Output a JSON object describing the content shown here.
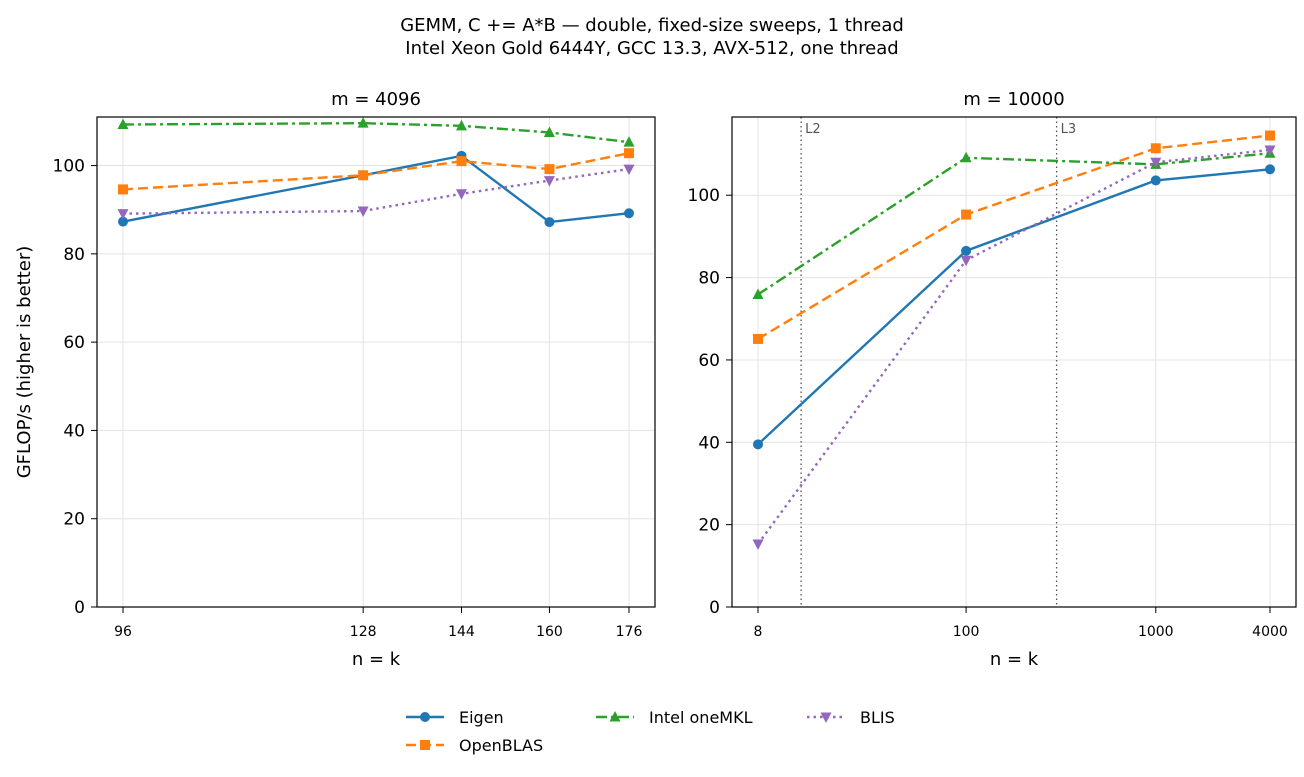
{
  "figure": {
    "title_line1": "GEMM, C += A*B — double, fixed-size sweeps, 1 thread",
    "title_line2": "Intel Xeon Gold 6444Y, GCC 13.3, AVX-512, one thread",
    "ylabel": "GFLOP/s (higher is better)"
  },
  "legend": [
    {
      "name": "Eigen",
      "color": "#1f77b4",
      "marker": "circle",
      "dash": "solid"
    },
    {
      "name": "Intel oneMKL",
      "color": "#2ca02c",
      "marker": "triangle-up",
      "dash": "dashdot"
    },
    {
      "name": "BLIS",
      "color": "#9467bd",
      "marker": "triangle-down",
      "dash": "dotted"
    },
    {
      "name": "OpenBLAS",
      "color": "#ff7f0e",
      "marker": "square",
      "dash": "dashed"
    }
  ],
  "chart_data": [
    {
      "type": "line",
      "title": "m = 4096",
      "xlabel": "n = k",
      "ylabel": "GFLOP/s (higher is better)",
      "x_scale": "log",
      "x": [
        96,
        128,
        144,
        160,
        176
      ],
      "x_ticks": [
        "96",
        "128",
        "144",
        "160",
        "176"
      ],
      "y_ticks": [
        "0",
        "20",
        "40",
        "60",
        "80",
        "100"
      ],
      "ylim": [
        0,
        111
      ],
      "grid": true,
      "series": [
        {
          "name": "Eigen",
          "values": [
            87.3,
            97.8,
            102.2,
            87.2,
            89.2
          ]
        },
        {
          "name": "OpenBLAS",
          "values": [
            94.6,
            97.8,
            101.0,
            99.2,
            102.8
          ]
        },
        {
          "name": "Intel oneMKL",
          "values": [
            109.3,
            109.6,
            109.0,
            107.5,
            105.3
          ]
        },
        {
          "name": "BLIS",
          "values": [
            89.1,
            89.7,
            93.6,
            96.6,
            99.2
          ]
        }
      ]
    },
    {
      "type": "line",
      "title": "m = 10000",
      "xlabel": "n = k",
      "x_scale": "log",
      "x": [
        8,
        100,
        1000,
        4000
      ],
      "x_ticks": [
        "8",
        "100",
        "1000",
        "4000"
      ],
      "y_ticks": [
        "0",
        "20",
        "40",
        "60",
        "80",
        "100"
      ],
      "ylim": [
        0,
        119
      ],
      "grid": true,
      "vlines": [
        {
          "x": 13.5,
          "label": "L2"
        },
        {
          "x": 300,
          "label": "L3"
        }
      ],
      "series": [
        {
          "name": "Eigen",
          "values": [
            39.5,
            86.5,
            103.6,
            106.3
          ]
        },
        {
          "name": "OpenBLAS",
          "values": [
            65.1,
            95.3,
            111.4,
            114.5
          ]
        },
        {
          "name": "Intel oneMKL",
          "values": [
            75.9,
            109.1,
            107.5,
            110.2
          ]
        },
        {
          "name": "BLIS",
          "values": [
            15.3,
            84.2,
            108.0,
            111.0
          ]
        }
      ]
    }
  ]
}
